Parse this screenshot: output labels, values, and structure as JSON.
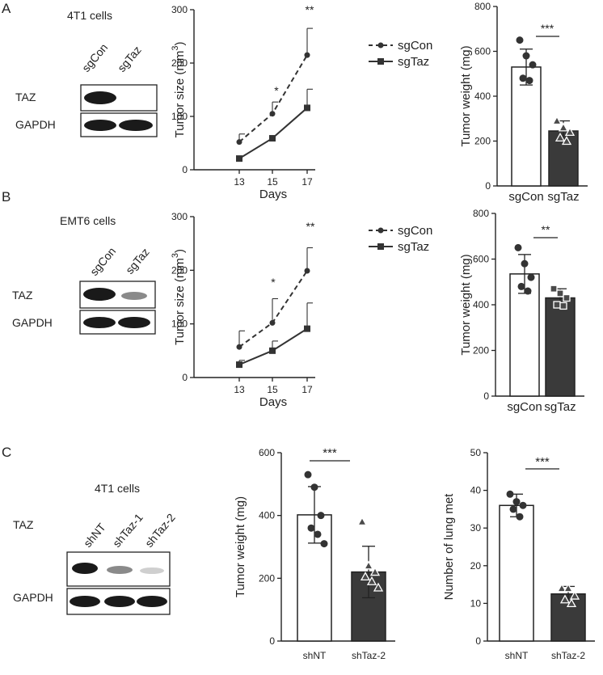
{
  "panels": {
    "A": {
      "letter": "A",
      "cells_label": "4T1 cells",
      "blot": {
        "lanes": [
          "sgCon",
          "sgTaz"
        ],
        "rows": [
          "TAZ",
          "GAPDH"
        ]
      },
      "sig_size": [
        "*",
        "**"
      ],
      "sig_weight": "***"
    },
    "B": {
      "letter": "B",
      "cells_label": "EMT6 cells",
      "blot": {
        "lanes": [
          "sgCon",
          "sgTaz"
        ],
        "rows": [
          "TAZ",
          "GAPDH"
        ]
      },
      "sig_size": [
        "*",
        "**"
      ],
      "sig_weight": "**"
    },
    "C": {
      "letter": "C",
      "cells_label": "4T1 cells",
      "blot": {
        "lanes": [
          "shNT",
          "shTaz-1",
          "shTaz-2"
        ],
        "rows": [
          "TAZ",
          "GAPDH"
        ]
      },
      "sig_weight": "***",
      "sig_met": "***"
    }
  },
  "chart_data": [
    {
      "id": "A-size",
      "type": "line",
      "xlabel": "Days",
      "ylabel": "Tumor size (mm 3)",
      "ylabel_sup": "3",
      "x": [
        13,
        15,
        17
      ],
      "ylim": [
        0,
        300
      ],
      "yticks": [
        0,
        100,
        200,
        300
      ],
      "series": [
        {
          "name": "sgCon",
          "values": [
            52,
            105,
            215
          ],
          "errors": [
            15,
            22,
            50
          ],
          "style": "dashed",
          "marker": "circle"
        },
        {
          "name": "sgTaz",
          "values": [
            21,
            59,
            116
          ],
          "errors": [
            0,
            0,
            35
          ],
          "style": "solid",
          "marker": "square"
        }
      ]
    },
    {
      "id": "A-weight",
      "type": "bar",
      "ylabel": "Tumor weight (mg)",
      "ylim": [
        0,
        800
      ],
      "yticks": [
        0,
        200,
        400,
        600,
        800
      ],
      "categories": [
        "sgCon",
        "sgTaz"
      ],
      "values": [
        530,
        245
      ],
      "errors": [
        80,
        45
      ],
      "points": [
        [
          650,
          580,
          540,
          480,
          470
        ],
        [
          290,
          260,
          240,
          215,
          200
        ]
      ]
    },
    {
      "id": "B-size",
      "type": "line",
      "xlabel": "Days",
      "ylabel": "Tumor size (mm 3)",
      "ylabel_sup": "3",
      "x": [
        13,
        15,
        17
      ],
      "ylim": [
        0,
        300
      ],
      "yticks": [
        0,
        100,
        200,
        300
      ],
      "series": [
        {
          "name": "sgCon",
          "values": [
            57,
            102,
            199
          ],
          "errors": [
            30,
            45,
            43
          ],
          "style": "dashed",
          "marker": "circle"
        },
        {
          "name": "sgTaz",
          "values": [
            24,
            50,
            91
          ],
          "errors": [
            8,
            18,
            48
          ],
          "style": "solid",
          "marker": "square"
        }
      ]
    },
    {
      "id": "B-weight",
      "type": "bar",
      "ylabel": "Tumor weight (mg)",
      "ylim": [
        0,
        800
      ],
      "yticks": [
        0,
        200,
        400,
        600,
        800
      ],
      "categories": [
        "sgCon",
        "sgTaz"
      ],
      "values": [
        535,
        430
      ],
      "errors": [
        85,
        40
      ],
      "points": [
        [
          650,
          580,
          520,
          480,
          460
        ],
        [
          470,
          450,
          430,
          400,
          395
        ]
      ]
    },
    {
      "id": "C-weight",
      "type": "bar",
      "ylabel": "Tumor weight (mg)",
      "ylim": [
        0,
        600
      ],
      "yticks": [
        0,
        200,
        400,
        600
      ],
      "categories": [
        "shNT",
        "shTaz-2"
      ],
      "values": [
        402,
        220
      ],
      "errors": [
        90,
        82
      ],
      "points": [
        [
          530,
          490,
          400,
          360,
          340,
          310
        ],
        [
          380,
          240,
          220,
          205,
          190,
          170
        ]
      ]
    },
    {
      "id": "C-met",
      "type": "bar",
      "ylabel": "Number of lung met",
      "ylim": [
        0,
        50
      ],
      "yticks": [
        0,
        10,
        20,
        30,
        40,
        50
      ],
      "categories": [
        "shNT",
        "shTaz-2"
      ],
      "values": [
        36,
        12.5
      ],
      "errors": [
        3,
        2
      ],
      "points": [
        [
          39,
          37,
          36,
          35,
          33
        ],
        [
          14,
          14,
          12,
          11,
          10
        ]
      ]
    }
  ]
}
